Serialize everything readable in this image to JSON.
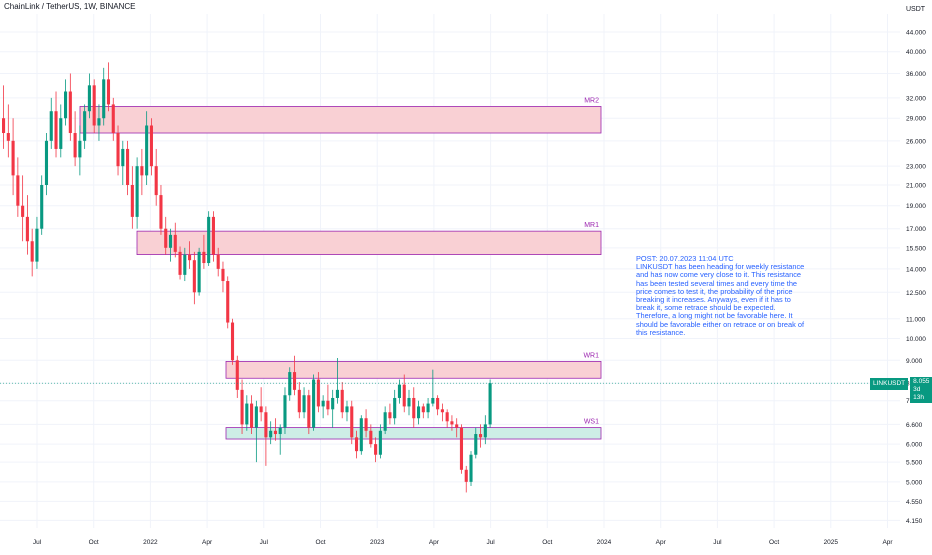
{
  "header": {
    "title": "ChainLink / TetherUS, 1W, BINANCE"
  },
  "axis": {
    "currency": "USDT"
  },
  "price_tag": {
    "symbol": "LINKUSDT",
    "price": "8.055",
    "countdown": "3d 13h"
  },
  "note": {
    "text": "POST: 20.07.2023 11:04 UTC\nLINKUSDT has been heading for weekly resistance and has now come very close to it. This resistance has been tested several times and every time the price comes to test it, the probability of the price breaking it increases. Anyways, even if it has to break it, some retrace should be expected. Therefore, a long might not be favorable here. It should be favorable either on retrace or on break of this resistance."
  },
  "colors": {
    "up": "#089981",
    "down": "#f23645",
    "zone_fill": "#f9d0d4",
    "support_fill": "#cdeee6",
    "zone_border": "#9c27b0",
    "zone_label": "#9c27b0",
    "axis_text": "#131722",
    "grid": "#f0f3fa"
  },
  "chart_data": {
    "type": "candlestick",
    "y_scale": "log",
    "ylim": [
      4.0,
      48.0
    ],
    "y_ticks": [
      "44.000",
      "40.000",
      "36.000",
      "32.000",
      "29.000",
      "26.000",
      "23.000",
      "21.000",
      "19.000",
      "17.000",
      "15.500",
      "14.000",
      "12.500",
      "11.000",
      "10.000",
      "9.000",
      "8.055",
      "7.400",
      "6.600",
      "6.000",
      "5.500",
      "5.000",
      "4.550",
      "4.150"
    ],
    "x_ticks": [
      "Jul",
      "Oct",
      "2022",
      "Apr",
      "Jul",
      "Oct",
      "2023",
      "Apr",
      "Jul",
      "Oct",
      "2024",
      "Apr",
      "Jul",
      "Oct",
      "2025",
      "Apr"
    ],
    "zones": [
      {
        "label": "MR2",
        "low": 27.0,
        "high": 30.7,
        "kind": "resistance"
      },
      {
        "label": "MR1",
        "low": 15.0,
        "high": 16.8,
        "kind": "resistance"
      },
      {
        "label": "WR1",
        "low": 8.25,
        "high": 8.95,
        "kind": "resistance"
      },
      {
        "label": "WS1",
        "low": 6.15,
        "high": 6.5,
        "kind": "support"
      }
    ],
    "last_price": 8.055,
    "candles": [
      [
        29,
        34,
        25,
        27
      ],
      [
        27,
        31,
        24,
        26
      ],
      [
        26,
        29,
        20,
        22
      ],
      [
        22,
        24,
        18,
        19
      ],
      [
        19,
        22,
        16,
        18
      ],
      [
        18,
        20,
        15,
        16
      ],
      [
        16,
        17,
        13.5,
        14.5
      ],
      [
        14.5,
        18,
        14,
        17
      ],
      [
        17,
        22,
        16.5,
        21
      ],
      [
        21,
        27,
        20,
        26
      ],
      [
        26,
        32,
        25,
        30
      ],
      [
        30,
        33,
        24,
        25
      ],
      [
        25,
        31,
        24,
        29
      ],
      [
        29,
        35,
        28,
        33
      ],
      [
        33,
        36,
        26,
        27
      ],
      [
        27,
        30,
        23,
        24
      ],
      [
        24,
        28,
        22,
        26
      ],
      [
        26,
        31,
        25,
        30
      ],
      [
        30,
        36,
        29,
        34
      ],
      [
        34,
        35,
        27,
        28
      ],
      [
        28,
        31,
        26,
        29
      ],
      [
        29,
        37,
        28,
        35
      ],
      [
        35,
        38,
        30,
        31
      ],
      [
        31,
        32,
        26,
        27
      ],
      [
        27,
        28,
        22,
        23
      ],
      [
        23,
        26,
        21,
        25
      ],
      [
        25,
        26,
        20,
        21
      ],
      [
        21,
        23,
        17,
        18
      ],
      [
        18,
        24,
        17,
        23
      ],
      [
        23,
        25,
        20,
        22
      ],
      [
        22,
        30,
        21,
        28
      ],
      [
        28,
        29,
        22,
        23
      ],
      [
        23,
        25,
        19,
        20
      ],
      [
        20,
        21,
        16.5,
        17
      ],
      [
        17,
        18,
        15,
        15.5
      ],
      [
        15.5,
        17,
        14.5,
        16.5
      ],
      [
        16.5,
        17.5,
        14.8,
        15.2
      ],
      [
        15.2,
        15.6,
        13.3,
        13.6
      ],
      [
        13.6,
        15.5,
        13.2,
        15
      ],
      [
        15,
        16,
        14,
        14.6
      ],
      [
        14.6,
        15.2,
        11.8,
        12.5
      ],
      [
        12.5,
        15.5,
        12.3,
        15.2
      ],
      [
        15.2,
        16.5,
        14,
        14.4
      ],
      [
        14.4,
        18.5,
        14.2,
        18
      ],
      [
        18,
        18.5,
        14.5,
        15
      ],
      [
        15,
        15.5,
        13.5,
        14
      ],
      [
        14,
        14.5,
        12.5,
        13.2
      ],
      [
        13.2,
        13.5,
        10.5,
        10.8
      ],
      [
        10.8,
        11,
        8.8,
        9
      ],
      [
        9,
        9.2,
        7.5,
        7.8
      ],
      [
        7.8,
        8.2,
        6.3,
        6.6
      ],
      [
        6.6,
        7.6,
        6.4,
        7.3
      ],
      [
        7.3,
        7.6,
        6.3,
        6.5
      ],
      [
        6.5,
        7.4,
        5.5,
        7.2
      ],
      [
        7.2,
        7.9,
        6.7,
        7.0
      ],
      [
        7.0,
        7.2,
        5.4,
        6.2
      ],
      [
        6.2,
        6.7,
        6.0,
        6.4
      ],
      [
        6.4,
        6.8,
        6.1,
        6.3
      ],
      [
        6.3,
        6.6,
        5.7,
        6.5
      ],
      [
        6.5,
        7.9,
        6.3,
        7.6
      ],
      [
        7.6,
        8.7,
        7.4,
        8.5
      ],
      [
        8.5,
        9.2,
        7.6,
        7.8
      ],
      [
        7.8,
        8.1,
        6.8,
        7.0
      ],
      [
        7.0,
        7.9,
        6.8,
        7.6
      ],
      [
        7.6,
        7.8,
        6.3,
        6.5
      ],
      [
        6.5,
        8.4,
        6.4,
        8.2
      ],
      [
        8.2,
        8.5,
        7.0,
        7.2
      ],
      [
        7.2,
        7.6,
        6.8,
        7.4
      ],
      [
        7.4,
        8.0,
        6.9,
        7.1
      ],
      [
        7.1,
        7.8,
        6.5,
        7.5
      ],
      [
        7.5,
        9.1,
        7.3,
        7.8
      ],
      [
        7.8,
        8.1,
        6.8,
        7.0
      ],
      [
        7.0,
        7.4,
        6.7,
        7.2
      ],
      [
        7.2,
        7.4,
        6.0,
        6.2
      ],
      [
        6.2,
        6.4,
        5.6,
        5.8
      ],
      [
        5.8,
        6.9,
        5.7,
        6.8
      ],
      [
        6.8,
        7.1,
        6.2,
        6.4
      ],
      [
        6.4,
        6.6,
        5.9,
        6.0
      ],
      [
        6.0,
        6.2,
        5.5,
        5.7
      ],
      [
        5.7,
        6.6,
        5.6,
        6.4
      ],
      [
        6.4,
        7.2,
        6.3,
        7.0
      ],
      [
        7.0,
        7.3,
        6.6,
        6.8
      ],
      [
        6.8,
        7.8,
        6.6,
        7.5
      ],
      [
        7.5,
        8.2,
        7.3,
        8.0
      ],
      [
        8.0,
        8.4,
        7.0,
        7.2
      ],
      [
        7.2,
        7.8,
        6.9,
        7.5
      ],
      [
        7.5,
        7.9,
        6.5,
        6.8
      ],
      [
        6.8,
        7.4,
        6.6,
        7.2
      ],
      [
        7.2,
        7.3,
        6.8,
        7.0
      ],
      [
        7.0,
        7.5,
        6.8,
        7.3
      ],
      [
        7.3,
        8.6,
        7.2,
        7.5
      ],
      [
        7.5,
        7.6,
        6.9,
        7.1
      ],
      [
        7.1,
        7.3,
        6.7,
        7.0
      ],
      [
        7.0,
        7.1,
        6.5,
        6.7
      ],
      [
        6.7,
        6.9,
        6.4,
        6.6
      ],
      [
        6.6,
        6.8,
        6.2,
        6.5
      ],
      [
        6.5,
        6.6,
        5.2,
        5.3
      ],
      [
        5.3,
        5.4,
        4.75,
        5.0
      ],
      [
        5.0,
        5.8,
        4.9,
        5.7
      ],
      [
        5.7,
        6.5,
        5.6,
        6.3
      ],
      [
        6.3,
        6.6,
        5.9,
        6.2
      ],
      [
        6.2,
        6.9,
        6.0,
        6.6
      ],
      [
        6.6,
        8.2,
        6.5,
        8.055
      ]
    ]
  }
}
